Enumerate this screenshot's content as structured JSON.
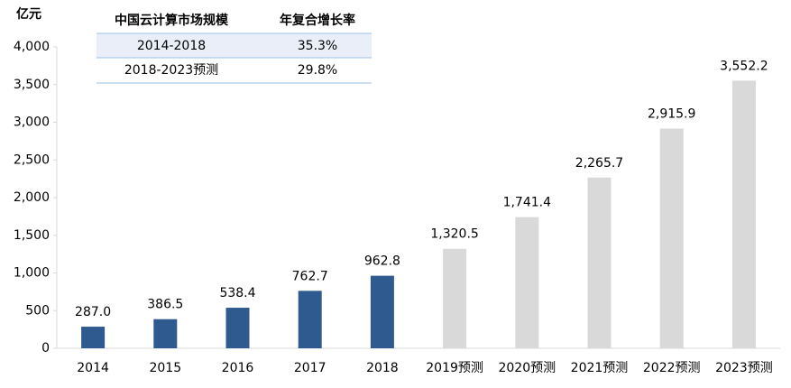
{
  "chart_data": {
    "type": "bar",
    "y_label": "亿元",
    "categories": [
      "2014",
      "2015",
      "2016",
      "2017",
      "2018",
      "2019预测",
      "2020预测",
      "2021预测",
      "2022预测",
      "2023预测"
    ],
    "values": [
      287.0,
      386.5,
      538.4,
      762.7,
      962.8,
      1320.5,
      1741.4,
      2265.7,
      2915.9,
      3552.2
    ],
    "value_labels": [
      "287.0",
      "386.5",
      "538.4",
      "762.7",
      "962.8",
      "1,320.5",
      "1,741.4",
      "2,265.7",
      "2,915.9",
      "3,552.2"
    ],
    "colors": [
      "#2f5a8f",
      "#2f5a8f",
      "#2f5a8f",
      "#2f5a8f",
      "#2f5a8f",
      "#d9d9d9",
      "#d9d9d9",
      "#d9d9d9",
      "#d9d9d9",
      "#d9d9d9"
    ],
    "ylim": [
      0,
      4000
    ],
    "yticks": [
      0,
      500,
      {
        "value": 1000,
        "label": "1,000"
      },
      {
        "value": 1500,
        "label": "1,500"
      },
      {
        "value": 2000,
        "label": "2,000"
      },
      {
        "value": 2500,
        "label": "2,500"
      },
      {
        "value": 3000,
        "label": "3,000"
      },
      {
        "value": 3500,
        "label": "3,500"
      },
      {
        "value": 4000,
        "label": "4,000"
      }
    ],
    "grid": false,
    "table": {
      "header": [
        "中国云计算市场规模",
        "年复合增长率"
      ],
      "rows": [
        [
          "2014-2018",
          "35.3%"
        ],
        [
          "2018-2023预测",
          "29.8%"
        ]
      ]
    }
  }
}
